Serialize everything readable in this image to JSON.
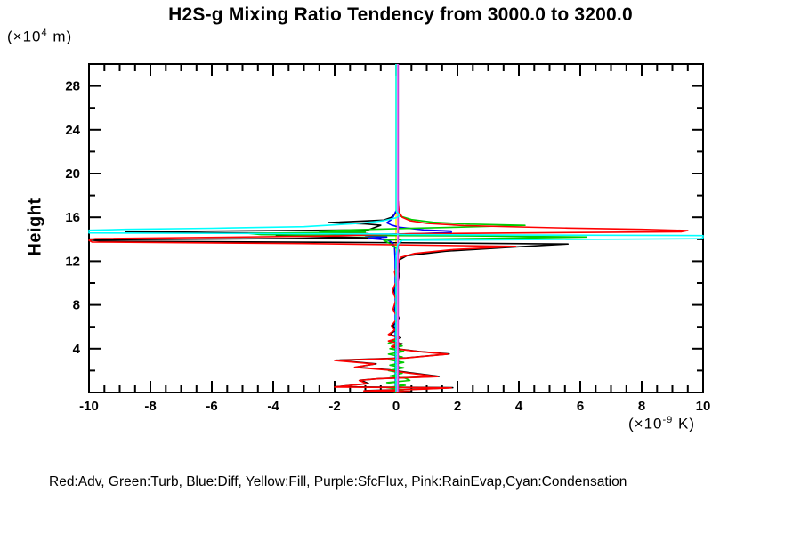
{
  "title": "H2S-g Mixing Ratio Tendency from 3000.0 to 3200.0",
  "units": {
    "y": {
      "pre": "(×10",
      "sup": "4",
      "post": " m)"
    },
    "x": {
      "pre": "(×10",
      "sup": "-9",
      "post": " K)"
    }
  },
  "y_axis_label": "Height",
  "legend_note": "Red:Adv, Green:Turb, Blue:Diff, Yellow:Fill, Purple:SfcFlux, Pink:RainEvap,Cyan:Condensation",
  "chart_data": {
    "type": "line",
    "title": "H2S-g Mixing Ratio Tendency from 3000.0 to 3200.0",
    "xlabel": "(×10-9 K)",
    "ylabel": "Height (×10^4 m)",
    "xlim": [
      -10,
      10
    ],
    "ylim": [
      0,
      30
    ],
    "grid": false,
    "x_ticks": {
      "major": [
        -10,
        -8,
        -6,
        -4,
        -2,
        0,
        2,
        4,
        6,
        8,
        10
      ],
      "labels": [
        "-10",
        "-8",
        "-6",
        "-4",
        "-2",
        "0",
        "2",
        "4",
        "6",
        "8",
        "10"
      ],
      "minor_step": 0.5
    },
    "y_ticks": {
      "major": [
        4,
        8,
        12,
        16,
        20,
        24,
        28
      ],
      "labels": [
        "4",
        "8",
        "12",
        "16",
        "20",
        "24",
        "28"
      ],
      "minor_step": 2
    },
    "series": [
      {
        "name": "fill",
        "legend": "Yellow:Fill",
        "color": "#ffff00",
        "points": [
          [
            0,
            30
          ],
          [
            0,
            0
          ]
        ]
      },
      {
        "name": "total-black",
        "legend": "black",
        "color": "#000000",
        "points": [
          [
            0,
            16.4
          ],
          [
            -0.15,
            16.0
          ],
          [
            -0.4,
            15.75
          ],
          [
            -2.2,
            15.52
          ],
          [
            -1.0,
            15.4
          ],
          [
            -0.5,
            15.28
          ],
          [
            -0.9,
            14.85
          ],
          [
            -8.8,
            14.68
          ],
          [
            -6.2,
            14.58
          ],
          [
            -0.9,
            14.5
          ],
          [
            -2.2,
            14.36
          ],
          [
            -3.9,
            14.3
          ],
          [
            -0.5,
            14.12
          ],
          [
            -10,
            13.94
          ],
          [
            -9.6,
            13.82
          ],
          [
            -0.9,
            13.7
          ],
          [
            5.6,
            13.56
          ],
          [
            4.8,
            13.44
          ],
          [
            3.9,
            13.3
          ],
          [
            1.6,
            12.9
          ],
          [
            0.35,
            12.5
          ],
          [
            0.1,
            12.1
          ],
          [
            0.12,
            11.0
          ],
          [
            0.07,
            10.2
          ],
          [
            -0.07,
            9.3
          ],
          [
            0.05,
            8.5
          ],
          [
            -0.05,
            7.6
          ],
          [
            0.1,
            6.8
          ],
          [
            -0.1,
            6.1
          ],
          [
            0.0,
            5.7
          ],
          [
            -0.2,
            5.3
          ],
          [
            0.15,
            5.0
          ],
          [
            -0.2,
            4.7
          ],
          [
            0.2,
            4.45
          ],
          [
            -0.1,
            4.2
          ],
          [
            0.15,
            3.95
          ],
          [
            0.75,
            3.75
          ],
          [
            1.73,
            3.52
          ],
          [
            0.35,
            3.17
          ],
          [
            -1.95,
            2.95
          ],
          [
            -0.65,
            2.62
          ],
          [
            -1.3,
            2.32
          ],
          [
            -0.2,
            2.07
          ],
          [
            0.4,
            1.82
          ],
          [
            1.4,
            1.47
          ],
          [
            -0.55,
            1.27
          ],
          [
            -1.15,
            1.12
          ],
          [
            -0.9,
            0.82
          ],
          [
            -1.95,
            0.52
          ],
          [
            1.85,
            0.44
          ],
          [
            0.85,
            0.32
          ],
          [
            -1.0,
            0.17
          ],
          [
            0.5,
            0.09
          ],
          [
            0.05,
            0.0
          ]
        ]
      },
      {
        "name": "diff",
        "legend": "Blue:Diff",
        "color": "#0000ff",
        "points": [
          [
            0,
            16.6
          ],
          [
            -0.08,
            16.1
          ],
          [
            -0.15,
            15.8
          ],
          [
            -0.3,
            15.5
          ],
          [
            -0.15,
            15.3
          ],
          [
            0.1,
            15.1
          ],
          [
            0.9,
            14.85
          ],
          [
            1.8,
            14.75
          ],
          [
            1.8,
            14.62
          ],
          [
            0.8,
            14.52
          ],
          [
            -0.9,
            14.44
          ],
          [
            -1.0,
            14.32
          ],
          [
            -0.3,
            14.2
          ],
          [
            -0.9,
            14.08
          ],
          [
            -0.3,
            13.95
          ],
          [
            -0.12,
            13.7
          ],
          [
            -0.05,
            13.3
          ],
          [
            -0.03,
            12.0
          ],
          [
            -0.02,
            0
          ]
        ]
      },
      {
        "name": "turb",
        "legend": "Green:Turb",
        "color": "#00cc00",
        "points": [
          [
            0,
            16.6
          ],
          [
            0.15,
            16.1
          ],
          [
            0.5,
            15.8
          ],
          [
            1.2,
            15.55
          ],
          [
            2.4,
            15.38
          ],
          [
            4.2,
            15.27
          ],
          [
            2.0,
            15.1
          ],
          [
            0.3,
            14.98
          ],
          [
            -1.5,
            14.85
          ],
          [
            -2.5,
            14.75
          ],
          [
            -1.0,
            14.65
          ],
          [
            -4.8,
            14.54
          ],
          [
            -4.4,
            14.42
          ],
          [
            -2.0,
            14.36
          ],
          [
            2.5,
            14.3
          ],
          [
            6.2,
            14.2
          ],
          [
            3.8,
            14.1
          ],
          [
            0.5,
            14.0
          ],
          [
            -0.4,
            13.9
          ],
          [
            -0.2,
            13.6
          ],
          [
            0.1,
            13.0
          ],
          [
            0.05,
            12.4
          ],
          [
            0,
            11.5
          ],
          [
            0,
            4.8
          ],
          [
            -0.25,
            4.5
          ],
          [
            0.2,
            4.25
          ],
          [
            -0.2,
            4.0
          ],
          [
            0.25,
            3.75
          ],
          [
            -0.25,
            3.5
          ],
          [
            0.2,
            3.25
          ],
          [
            -0.25,
            3.0
          ],
          [
            0.25,
            2.75
          ],
          [
            -0.2,
            2.5
          ],
          [
            0.25,
            2.25
          ],
          [
            -0.25,
            2.0
          ],
          [
            0.2,
            1.75
          ],
          [
            -0.2,
            1.5
          ],
          [
            0.3,
            1.3
          ],
          [
            0.45,
            1.1
          ],
          [
            -0.3,
            0.9
          ],
          [
            0.3,
            0.65
          ],
          [
            -0.3,
            0.45
          ],
          [
            0.25,
            0.25
          ],
          [
            -0.15,
            0.1
          ],
          [
            0,
            0
          ]
        ]
      },
      {
        "name": "adv",
        "legend": "Red:Adv",
        "color": "#ff0000",
        "points": [
          [
            0.07,
            17.5
          ],
          [
            0.1,
            16.5
          ],
          [
            0.2,
            16.0
          ],
          [
            0.45,
            15.7
          ],
          [
            1.0,
            15.45
          ],
          [
            2.2,
            15.25
          ],
          [
            4.0,
            15.12
          ],
          [
            5.6,
            15.02
          ],
          [
            8.0,
            14.9
          ],
          [
            9.5,
            14.8
          ],
          [
            9.3,
            14.68
          ],
          [
            0.5,
            14.5
          ],
          [
            -2.0,
            14.3
          ],
          [
            -9.8,
            14.05
          ],
          [
            -10,
            13.9
          ],
          [
            -9.9,
            13.75
          ],
          [
            -3.0,
            13.6
          ],
          [
            3.9,
            13.35
          ],
          [
            1.8,
            13.05
          ],
          [
            0.6,
            12.7
          ],
          [
            0.15,
            12.35
          ],
          [
            0.07,
            11.8
          ],
          [
            -0.05,
            11.0
          ],
          [
            0.02,
            10.2
          ],
          [
            -0.12,
            9.3
          ],
          [
            0.0,
            8.5
          ],
          [
            -0.1,
            7.6
          ],
          [
            0.05,
            6.8
          ],
          [
            -0.15,
            6.1
          ],
          [
            -0.05,
            5.7
          ],
          [
            -0.25,
            5.3
          ],
          [
            0.1,
            5.0
          ],
          [
            -0.25,
            4.7
          ],
          [
            0.15,
            4.45
          ],
          [
            -0.15,
            4.2
          ],
          [
            0.1,
            3.95
          ],
          [
            0.7,
            3.75
          ],
          [
            1.68,
            3.5
          ],
          [
            0.3,
            3.15
          ],
          [
            -2.0,
            2.93
          ],
          [
            -0.7,
            2.6
          ],
          [
            -1.35,
            2.3
          ],
          [
            -0.25,
            2.05
          ],
          [
            0.35,
            1.8
          ],
          [
            1.35,
            1.45
          ],
          [
            -0.6,
            1.25
          ],
          [
            -1.2,
            1.1
          ],
          [
            -0.95,
            0.8
          ],
          [
            -2.0,
            0.5
          ],
          [
            1.8,
            0.42
          ],
          [
            0.8,
            0.3
          ],
          [
            -1.05,
            0.15
          ],
          [
            0.45,
            0.07
          ],
          [
            0,
            0
          ]
        ]
      },
      {
        "name": "sfcflux",
        "legend": "Purple:SfcFlux",
        "color": "#9020c0",
        "points": [
          [
            0.07,
            30
          ],
          [
            0.07,
            0
          ]
        ]
      },
      {
        "name": "rainevap",
        "legend": "Pink:RainEvap",
        "color": "#f070f0",
        "points": [
          [
            0.05,
            30
          ],
          [
            0.05,
            0
          ]
        ]
      },
      {
        "name": "condensation",
        "legend": "Cyan:Condensation",
        "color": "#00ffff",
        "points": [
          [
            0,
            30
          ],
          [
            0,
            16.6
          ],
          [
            0.12,
            16.15
          ],
          [
            0,
            15.95
          ],
          [
            -0.4,
            15.7
          ],
          [
            -1.2,
            15.45
          ],
          [
            -3,
            15.15
          ],
          [
            -6,
            15.0
          ],
          [
            -8.8,
            14.9
          ],
          [
            -10,
            14.82
          ],
          [
            -10,
            14.58
          ],
          [
            -0.3,
            14.48
          ],
          [
            0.3,
            14.42
          ],
          [
            10,
            14.33
          ],
          [
            10,
            14.15
          ],
          [
            9.9,
            14.05
          ],
          [
            0.2,
            13.9
          ],
          [
            0.05,
            13.5
          ],
          [
            0,
            12.5
          ],
          [
            0,
            0
          ]
        ]
      }
    ]
  }
}
